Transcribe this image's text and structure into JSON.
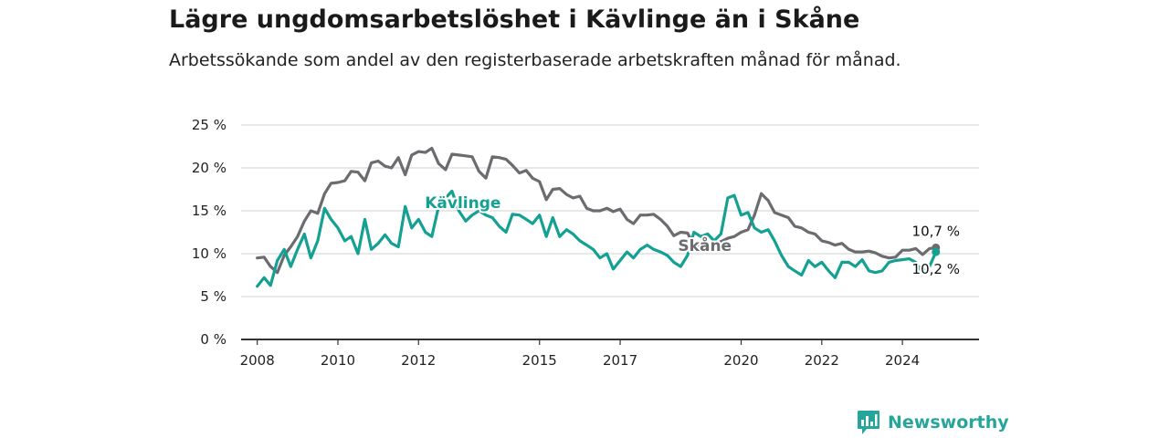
{
  "title": "Lägre ungdomsarbetslöshet i Kävlinge än i Skåne",
  "subtitle": "Arbetssökande som andel av den registerbaserade arbetskraften månad för månad.",
  "brand": {
    "name": "Newsworthy",
    "logo_icon": "bar-chart-speech-bubble-icon"
  },
  "colors": {
    "kavlinge": "#14a193",
    "skane": "#6b6b70",
    "grid": "#d9d9d9",
    "axis": "#333333"
  },
  "chart_data": {
    "type": "line",
    "x_ticks": [
      "2008",
      "2010",
      "2012",
      "2015",
      "2017",
      "2020",
      "2022",
      "2024"
    ],
    "y_ticks": [
      "0 %",
      "5 %",
      "10 %",
      "15 %",
      "20 %",
      "25 %"
    ],
    "ylim": [
      0,
      25
    ],
    "xlim": [
      2007.6,
      2025.9
    ],
    "grid": true,
    "series": [
      {
        "name": "Skåne",
        "end_label": "10,7 %",
        "x": [
          2008.0,
          2008.17,
          2008.33,
          2008.5,
          2008.67,
          2008.83,
          2009.0,
          2009.17,
          2009.33,
          2009.5,
          2009.67,
          2009.83,
          2010.0,
          2010.17,
          2010.33,
          2010.5,
          2010.67,
          2010.83,
          2011.0,
          2011.17,
          2011.33,
          2011.5,
          2011.67,
          2011.83,
          2012.0,
          2012.17,
          2012.33,
          2012.5,
          2012.67,
          2012.83,
          2013.0,
          2013.17,
          2013.33,
          2013.5,
          2013.67,
          2013.83,
          2014.0,
          2014.17,
          2014.33,
          2014.5,
          2014.67,
          2014.83,
          2015.0,
          2015.17,
          2015.33,
          2015.5,
          2015.67,
          2015.83,
          2016.0,
          2016.17,
          2016.33,
          2016.5,
          2016.67,
          2016.83,
          2017.0,
          2017.17,
          2017.33,
          2017.5,
          2017.67,
          2017.83,
          2018.0,
          2018.17,
          2018.33,
          2018.5,
          2018.67,
          2018.83,
          2019.0,
          2019.17,
          2019.33,
          2019.5,
          2019.67,
          2019.83,
          2020.0,
          2020.17,
          2020.33,
          2020.5,
          2020.67,
          2020.83,
          2021.0,
          2021.17,
          2021.33,
          2021.5,
          2021.67,
          2021.83,
          2022.0,
          2022.17,
          2022.33,
          2022.5,
          2022.67,
          2022.83,
          2023.0,
          2023.17,
          2023.33,
          2023.5,
          2023.67,
          2023.83,
          2024.0,
          2024.17,
          2024.33,
          2024.5,
          2024.67,
          2024.83
        ],
        "y": [
          9.5,
          9.6,
          8.5,
          7.8,
          9.8,
          10.8,
          12.0,
          13.8,
          15.0,
          14.7,
          17.0,
          18.2,
          18.3,
          18.5,
          19.6,
          19.5,
          18.5,
          20.6,
          20.8,
          20.2,
          20.0,
          21.2,
          19.2,
          21.5,
          21.9,
          21.8,
          22.3,
          20.5,
          19.8,
          21.6,
          21.5,
          21.4,
          21.3,
          19.6,
          18.8,
          21.3,
          21.2,
          21.0,
          20.3,
          19.4,
          19.7,
          18.8,
          18.4,
          16.3,
          17.5,
          17.6,
          16.9,
          16.5,
          16.7,
          15.3,
          15.0,
          15.0,
          15.3,
          14.9,
          15.2,
          14.0,
          13.5,
          14.5,
          14.5,
          14.6,
          14.0,
          13.2,
          12.1,
          12.5,
          12.4,
          11.0,
          11.0,
          11.0,
          11.1,
          11.4,
          11.8,
          12.0,
          12.5,
          12.8,
          14.5,
          17.0,
          16.2,
          14.8,
          14.5,
          14.2,
          13.2,
          13.0,
          12.5,
          12.3,
          11.5,
          11.3,
          11.0,
          11.2,
          10.5,
          10.2,
          10.2,
          10.3,
          10.1,
          9.7,
          9.5,
          9.6,
          10.4,
          10.4,
          10.6,
          9.9,
          10.6,
          10.7
        ]
      },
      {
        "name": "Kävlinge",
        "end_label": "10,2 %",
        "x": [
          2008.0,
          2008.17,
          2008.33,
          2008.5,
          2008.67,
          2008.83,
          2009.0,
          2009.17,
          2009.33,
          2009.5,
          2009.67,
          2009.83,
          2010.0,
          2010.17,
          2010.33,
          2010.5,
          2010.67,
          2010.83,
          2011.0,
          2011.17,
          2011.33,
          2011.5,
          2011.67,
          2011.83,
          2012.0,
          2012.17,
          2012.33,
          2012.5,
          2012.67,
          2012.83,
          2013.0,
          2013.17,
          2013.33,
          2013.5,
          2013.67,
          2013.83,
          2014.0,
          2014.17,
          2014.33,
          2014.5,
          2014.67,
          2014.83,
          2015.0,
          2015.17,
          2015.33,
          2015.5,
          2015.67,
          2015.83,
          2016.0,
          2016.17,
          2016.33,
          2016.5,
          2016.67,
          2016.83,
          2017.0,
          2017.17,
          2017.33,
          2017.5,
          2017.67,
          2017.83,
          2018.0,
          2018.17,
          2018.33,
          2018.5,
          2018.67,
          2018.83,
          2019.0,
          2019.17,
          2019.33,
          2019.5,
          2019.67,
          2019.83,
          2020.0,
          2020.17,
          2020.33,
          2020.5,
          2020.67,
          2020.83,
          2021.0,
          2021.17,
          2021.33,
          2021.5,
          2021.67,
          2021.83,
          2022.0,
          2022.17,
          2022.33,
          2022.5,
          2022.67,
          2022.83,
          2023.0,
          2023.17,
          2023.33,
          2023.5,
          2023.67,
          2023.83,
          2024.0,
          2024.17,
          2024.33,
          2024.5,
          2024.67,
          2024.83
        ],
        "y": [
          6.2,
          7.2,
          6.3,
          9.2,
          10.5,
          8.5,
          10.5,
          12.3,
          9.5,
          11.5,
          15.3,
          14.0,
          13.0,
          11.5,
          12.0,
          10.0,
          14.0,
          10.5,
          11.2,
          12.2,
          11.2,
          10.8,
          15.5,
          13.0,
          14.0,
          12.5,
          12.0,
          15.5,
          16.5,
          17.3,
          15.0,
          13.8,
          14.5,
          15.0,
          14.5,
          14.2,
          13.2,
          12.5,
          14.6,
          14.5,
          14.0,
          13.5,
          14.5,
          12.0,
          14.2,
          12.0,
          12.8,
          12.3,
          11.5,
          11.0,
          10.5,
          9.5,
          10.0,
          8.2,
          9.2,
          10.2,
          9.5,
          10.5,
          11.0,
          10.5,
          10.2,
          9.8,
          9.0,
          8.5,
          9.8,
          12.5,
          12.0,
          12.3,
          11.5,
          12.3,
          16.5,
          16.8,
          14.5,
          14.8,
          13.0,
          12.5,
          12.8,
          11.5,
          9.8,
          8.5,
          8.0,
          7.5,
          9.2,
          8.5,
          9.0,
          8.0,
          7.2,
          9.0,
          9.0,
          8.5,
          9.3,
          8.0,
          7.8,
          8.0,
          9.0,
          9.2,
          9.3,
          9.4,
          9.0,
          7.8,
          8.5,
          10.2
        ]
      }
    ]
  }
}
